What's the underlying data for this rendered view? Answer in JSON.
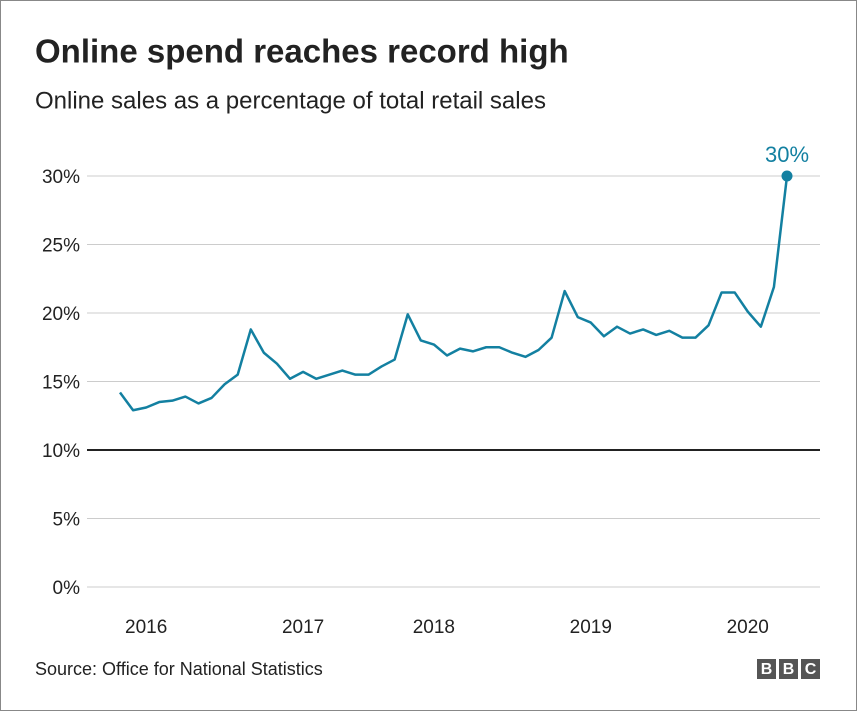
{
  "chart_data": {
    "type": "line",
    "title": "Online spend reaches record high",
    "subtitle": "Online sales as a percentage of total retail sales",
    "source": "Source: Office for National Statistics",
    "logo": [
      "B",
      "B",
      "C"
    ],
    "categories": [
      null,
      null,
      "2016",
      null,
      null,
      null,
      null,
      null,
      null,
      null,
      null,
      null,
      null,
      null,
      "2017",
      null,
      null,
      null,
      null,
      null,
      null,
      null,
      null,
      null,
      "2018",
      null,
      null,
      null,
      null,
      null,
      null,
      null,
      null,
      null,
      null,
      null,
      "2019",
      null,
      null,
      null,
      null,
      null,
      null,
      null,
      null,
      null,
      null,
      null,
      "2020",
      null,
      null,
      null
    ],
    "series": [
      {
        "color": "#1380a1",
        "values": [
          14.2,
          12.9,
          13.1,
          13.5,
          13.6,
          13.9,
          13.4,
          13.8,
          14.8,
          15.5,
          18.8,
          17.1,
          16.3,
          15.2,
          15.7,
          15.2,
          15.5,
          15.8,
          15.5,
          15.5,
          16.1,
          16.6,
          19.9,
          18.0,
          17.7,
          16.9,
          17.4,
          17.2,
          17.5,
          17.5,
          17.1,
          16.8,
          17.3,
          18.2,
          21.6,
          19.7,
          19.3,
          18.3,
          19.0,
          18.5,
          18.8,
          18.4,
          18.7,
          18.2,
          18.2,
          19.1,
          21.5,
          21.5,
          20.1,
          19.0,
          21.9,
          30.0
        ],
        "value_labels": [
          null,
          null,
          null,
          null,
          null,
          null,
          null,
          null,
          null,
          null,
          null,
          null,
          null,
          null,
          null,
          null,
          null,
          null,
          null,
          null,
          null,
          null,
          null,
          null,
          null,
          null,
          null,
          null,
          null,
          null,
          null,
          null,
          null,
          null,
          null,
          null,
          null,
          null,
          null,
          null,
          null,
          null,
          null,
          null,
          null,
          null,
          null,
          null,
          null,
          null,
          null,
          "30%"
        ]
      }
    ],
    "ylim": [
      0,
      30
    ],
    "yticks": [
      {
        "value": 0,
        "label": "0%"
      },
      {
        "value": 5,
        "label": "5%"
      },
      {
        "value": 10,
        "label": "10%"
      },
      {
        "value": 15,
        "label": "15%"
      },
      {
        "value": 20,
        "label": "20%"
      },
      {
        "value": 25,
        "label": "25%"
      },
      {
        "value": 30,
        "label": "30%"
      }
    ],
    "baseline": 10,
    "grid": true
  }
}
